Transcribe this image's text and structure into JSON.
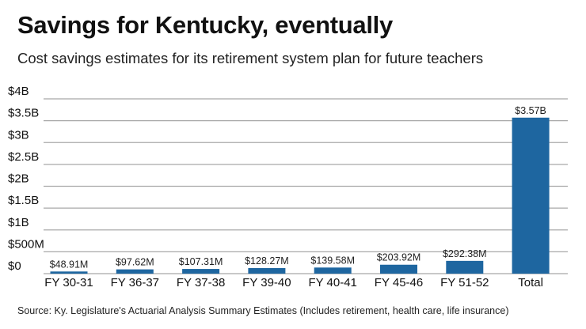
{
  "title": "Savings for Kentucky, eventually",
  "subtitle": "Cost savings estimates for its retirement system plan for future teachers",
  "source": "Source: Ky. Legislature's Actuarial Analysis Summary Estimates (Includes retirement, health care, life insurance)",
  "colors": {
    "bar": "#1e66a0",
    "grid": "#a8a8a8"
  },
  "chart_data": {
    "type": "bar",
    "title": "Savings for Kentucky, eventually",
    "xlabel": "",
    "ylabel": "",
    "units": "millions USD",
    "ylim": [
      0,
      4000
    ],
    "grid": true,
    "yticks": [
      0,
      500,
      1000,
      1500,
      2000,
      2500,
      3000,
      3500,
      4000
    ],
    "ytick_labels": [
      "$0",
      "$500M",
      "$1B",
      "$1.5B",
      "$2B",
      "$2.5B",
      "$3B",
      "$3.5B",
      "$4B"
    ],
    "categories": [
      "FY 30-31",
      "FY 36-37",
      "FY 37-38",
      "FY 39-40",
      "FY 40-41",
      "FY 45-46",
      "FY 51-52",
      "Total"
    ],
    "values": [
      48.91,
      97.62,
      107.31,
      128.27,
      139.58,
      203.92,
      292.38,
      3570
    ],
    "data_labels": [
      "$48.91M",
      "$97.62M",
      "$107.31M",
      "$128.27M",
      "$139.58M",
      "$203.92M",
      "$292.38M",
      "$3.57B"
    ]
  }
}
